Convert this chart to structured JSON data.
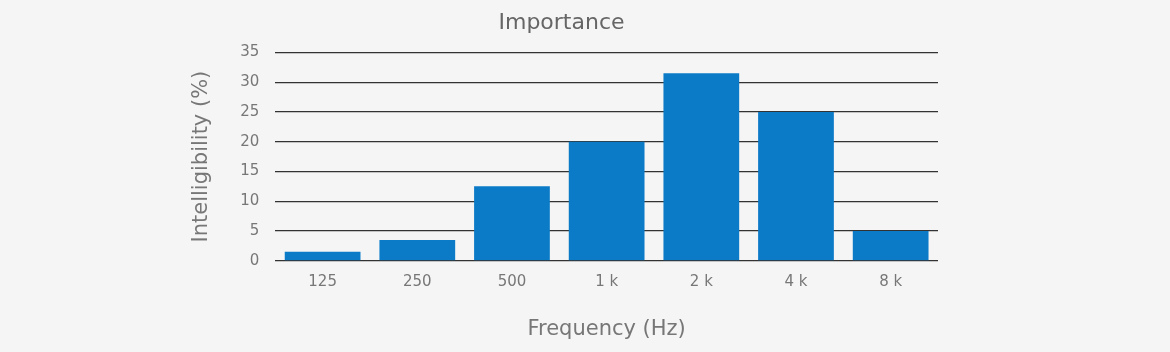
{
  "chart_data": {
    "type": "bar",
    "title": "Importance",
    "xlabel": "Frequency (Hz)",
    "ylabel": "Intelligibility (%)",
    "categories": [
      "125",
      "250",
      "500",
      "1 k",
      "2 k",
      "4 k",
      "8 k"
    ],
    "values": [
      1.5,
      3.5,
      12.5,
      20,
      31.5,
      25,
      5
    ],
    "color": "#0b7bc8",
    "ylim": [
      0,
      35
    ],
    "yticks": [
      0,
      5,
      10,
      15,
      20,
      25,
      30,
      35
    ],
    "grid": "y",
    "legend": false
  }
}
